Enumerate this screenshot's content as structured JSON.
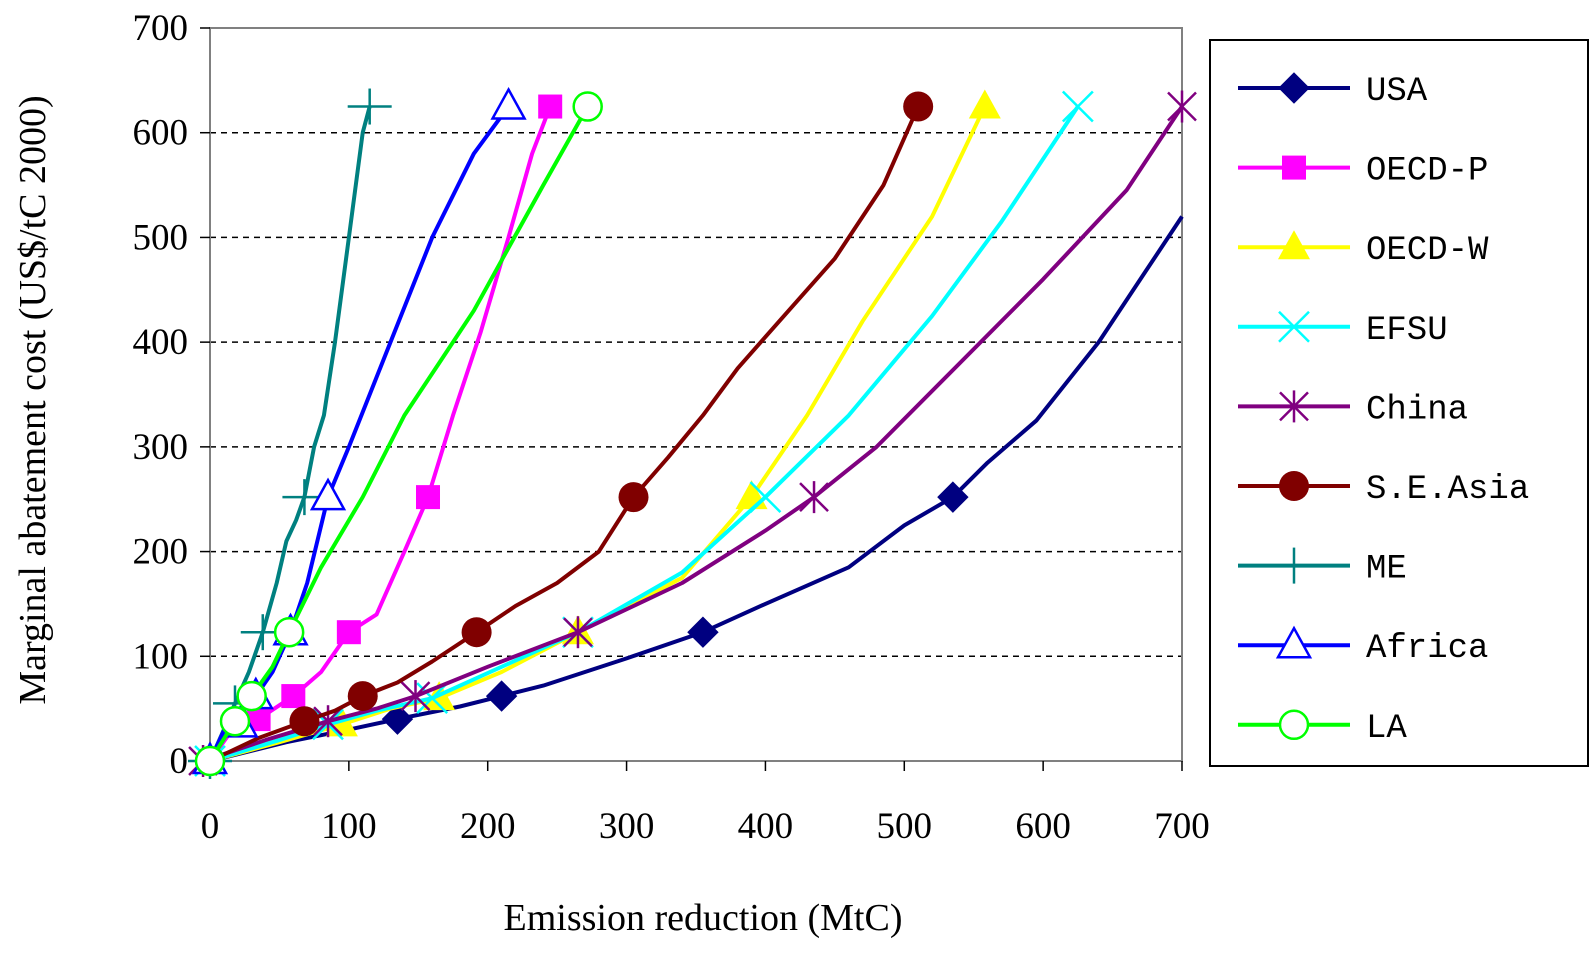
{
  "chart_data": {
    "type": "line",
    "title": "",
    "xlabel": "Emission reduction (MtC)",
    "ylabel": "Marginal abatement cost (US$/tC 2000)",
    "xlim": [
      0,
      700
    ],
    "ylim": [
      0,
      700
    ],
    "xticks": [
      "0",
      "100",
      "200",
      "300",
      "400",
      "500",
      "600",
      "700"
    ],
    "yticks": [
      "0",
      "100",
      "200",
      "300",
      "400",
      "500",
      "600",
      "700"
    ],
    "grid": "horizontal dashed",
    "legend": "right",
    "series": [
      {
        "name": "USA",
        "color": "#000080",
        "marker": "diamond",
        "x": [
          0,
          55,
          100,
          135,
          180,
          210,
          240,
          300,
          355,
          400,
          460,
          500,
          535,
          560,
          595,
          640,
          700
        ],
        "y": [
          0,
          18,
          30,
          40,
          52,
          62,
          72,
          98,
          123,
          150,
          185,
          225,
          252,
          285,
          325,
          400,
          520
        ],
        "mx": [
          0,
          135,
          210,
          355,
          535
        ],
        "my": [
          0,
          40,
          62,
          123,
          252
        ]
      },
      {
        "name": "OECD-P",
        "color": "#FF00FF",
        "marker": "square",
        "x": [
          0,
          15,
          35,
          60,
          80,
          100,
          120,
          140,
          157,
          175,
          195,
          215,
          232,
          245
        ],
        "y": [
          0,
          28,
          40,
          62,
          85,
          123,
          140,
          200,
          252,
          330,
          410,
          500,
          580,
          625
        ],
        "mx": [
          0,
          35,
          60,
          100,
          157,
          245
        ],
        "my": [
          0,
          40,
          62,
          123,
          252,
          625
        ]
      },
      {
        "name": "OECD-W",
        "color": "#FFFF00",
        "marker": "triangle",
        "x": [
          0,
          50,
          95,
          130,
          165,
          210,
          265,
          340,
          390,
          430,
          470,
          520,
          558
        ],
        "y": [
          0,
          18,
          35,
          50,
          60,
          85,
          123,
          175,
          252,
          330,
          420,
          520,
          625
        ],
        "mx": [
          0,
          95,
          165,
          265,
          390,
          558
        ],
        "my": [
          0,
          35,
          60,
          123,
          252,
          625
        ]
      },
      {
        "name": "EFSU",
        "color": "#00FFFF",
        "marker": "x",
        "x": [
          0,
          50,
          85,
          120,
          160,
          210,
          265,
          340,
          400,
          460,
          520,
          570,
          625
        ],
        "y": [
          0,
          20,
          35,
          48,
          60,
          90,
          123,
          180,
          252,
          330,
          425,
          515,
          625
        ],
        "mx": [
          0,
          85,
          160,
          265,
          400,
          625
        ],
        "my": [
          0,
          35,
          60,
          123,
          252,
          625
        ]
      },
      {
        "name": "China",
        "color": "#800080",
        "marker": "asterisk",
        "x": [
          -5,
          40,
          85,
          120,
          148,
          200,
          265,
          340,
          400,
          435,
          480,
          540,
          600,
          660,
          700
        ],
        "y": [
          0,
          20,
          38,
          50,
          62,
          90,
          123,
          170,
          220,
          252,
          300,
          380,
          460,
          545,
          625
        ],
        "mx": [
          -5,
          85,
          148,
          265,
          435,
          700
        ],
        "my": [
          0,
          38,
          62,
          123,
          252,
          625
        ]
      },
      {
        "name": "S.E.Asia",
        "color": "#800000",
        "marker": "circle",
        "x": [
          0,
          35,
          68,
          90,
          110,
          135,
          160,
          192,
          220,
          250,
          280,
          305,
          330,
          355,
          380,
          410,
          450,
          485,
          510
        ],
        "y": [
          0,
          22,
          38,
          48,
          62,
          75,
          95,
          123,
          148,
          170,
          200,
          252,
          290,
          330,
          375,
          420,
          480,
          550,
          625
        ],
        "mx": [
          0,
          68,
          110,
          192,
          305,
          510
        ],
        "my": [
          0,
          38,
          62,
          123,
          252,
          625
        ]
      },
      {
        "name": "ME",
        "color": "#008080",
        "marker": "plus",
        "x": [
          0,
          10,
          18,
          28,
          38,
          48,
          55,
          62,
          68,
          75,
          82,
          90,
          100,
          110,
          115
        ],
        "y": [
          0,
          30,
          55,
          85,
          123,
          170,
          210,
          230,
          252,
          300,
          330,
          400,
          500,
          600,
          625
        ],
        "mx": [
          0,
          18,
          38,
          68,
          115
        ],
        "my": [
          0,
          55,
          123,
          252,
          625
        ]
      },
      {
        "name": "Africa",
        "color": "#0000FF",
        "marker": "triangle-open",
        "x": [
          0,
          12,
          22,
          33,
          45,
          58,
          70,
          85,
          100,
          130,
          160,
          190,
          215
        ],
        "y": [
          0,
          35,
          45,
          62,
          85,
          123,
          170,
          252,
          300,
          400,
          500,
          580,
          625
        ],
        "mx": [
          0,
          22,
          33,
          58,
          85,
          215
        ],
        "my": [
          0,
          35,
          62,
          123,
          252,
          625
        ]
      },
      {
        "name": "LA",
        "color": "#00FF00",
        "marker": "circle-open",
        "x": [
          0,
          18,
          30,
          45,
          57,
          80,
          110,
          140,
          165,
          190,
          215,
          240,
          272
        ],
        "y": [
          0,
          38,
          62,
          90,
          123,
          185,
          252,
          330,
          380,
          430,
          490,
          550,
          625
        ],
        "mx": [
          0,
          18,
          30,
          57,
          272
        ],
        "my": [
          0,
          38,
          62,
          123,
          625
        ]
      }
    ]
  }
}
